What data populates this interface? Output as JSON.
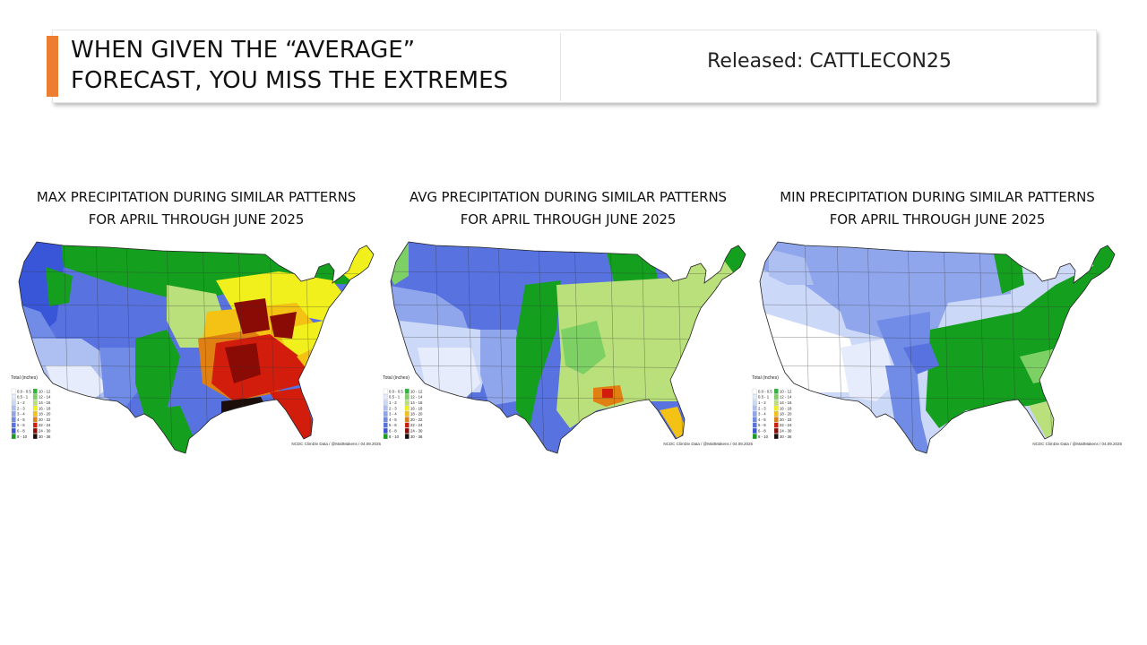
{
  "header": {
    "title_line1": "WHEN GIVEN THE “AVERAGE”",
    "title_line2": "FORECAST, YOU MISS THE EXTREMES",
    "released": "Released: CATTLECON25",
    "accent_color": "#ed7d31"
  },
  "legend": {
    "title": "Total (inches)",
    "items": [
      {
        "label": "0.0 - 0.5",
        "color": "#ffffff"
      },
      {
        "label": "0.5 - 1",
        "color": "#e6ecfb"
      },
      {
        "label": "1 - 2",
        "color": "#ccd8f7"
      },
      {
        "label": "2 - 3",
        "color": "#aebff2"
      },
      {
        "label": "3 - 4",
        "color": "#8fa6ec"
      },
      {
        "label": "4 - 5",
        "color": "#708ce6"
      },
      {
        "label": "5 - 6",
        "color": "#5873e0"
      },
      {
        "label": "6 - 8",
        "color": "#3a56d8"
      },
      {
        "label": "8 - 10",
        "color": "#14a01e"
      },
      {
        "label": "10 - 12",
        "color": "#2fb53a"
      },
      {
        "label": "12 - 14",
        "color": "#7cd064"
      },
      {
        "label": "14 - 16",
        "color": "#b9e07a"
      },
      {
        "label": "16 - 18",
        "color": "#f2f01c"
      },
      {
        "label": "18 - 20",
        "color": "#f4c214"
      },
      {
        "label": "20 - 22",
        "color": "#e07f12"
      },
      {
        "label": "22 - 24",
        "color": "#d21c0c"
      },
      {
        "label": "24 - 30",
        "color": "#8a0b05"
      },
      {
        "label": "30 - 36",
        "color": "#1a0d0a"
      }
    ]
  },
  "panels": [
    {
      "id": "max",
      "title_line1": "MAX PRECIPITATION DURING SIMILAR PATTERNS",
      "title_line2": "FOR APRIL THROUGH JUNE 2025",
      "credit": "NCDC ClimDiv Data / @MattMakens / 04.09.2025"
    },
    {
      "id": "avg",
      "title_line1": "AVG PRECIPITATION DURING SIMILAR PATTERNS",
      "title_line2": "FOR APRIL THROUGH JUNE 2025",
      "credit": "NCDC ClimDiv Data / @MattMakens / 04.09.2025"
    },
    {
      "id": "min",
      "title_line1": "MIN PRECIPITATION DURING SIMILAR PATTERNS",
      "title_line2": "FOR APRIL THROUGH JUNE 2025",
      "credit": "NCDC ClimDiv Data / @MattMakens / 04.09.2025"
    }
  ]
}
